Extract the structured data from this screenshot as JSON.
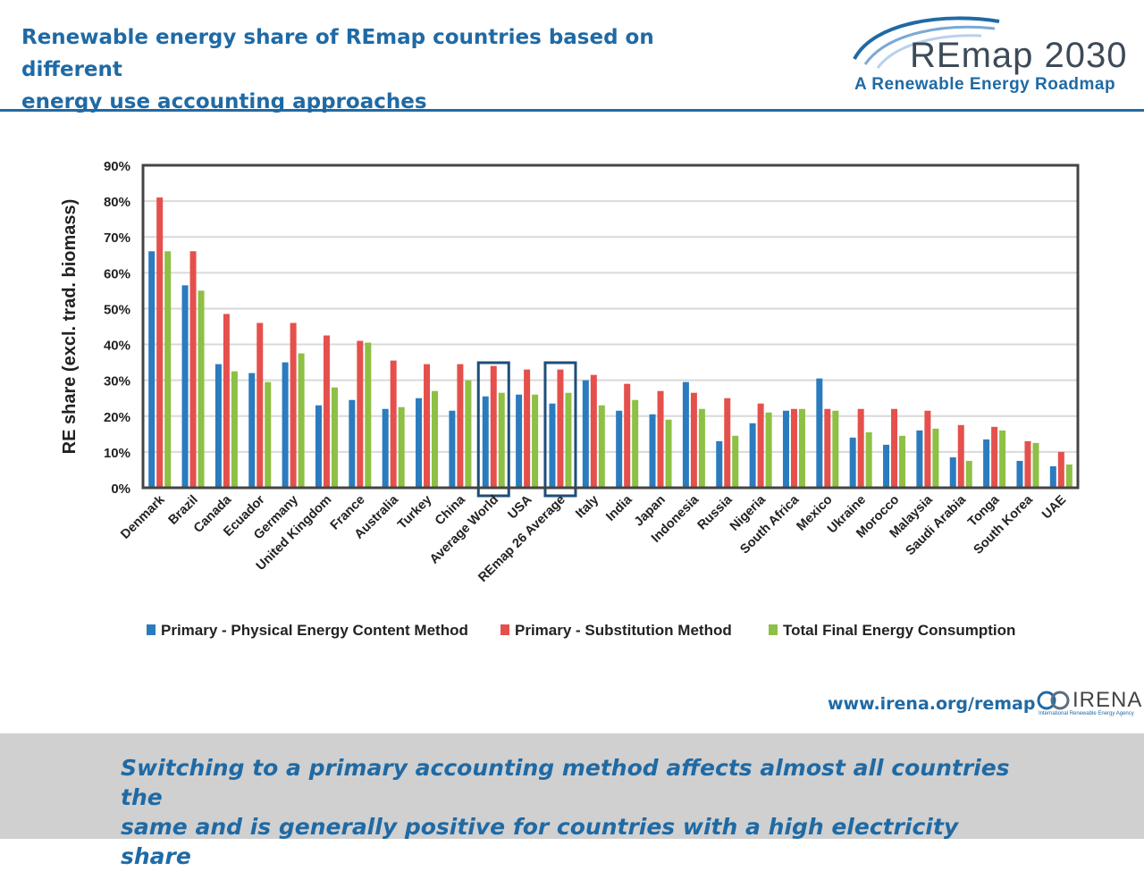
{
  "header": {
    "title_line1": "Renewable energy share of REmap countries based on different",
    "title_line2": "energy use accounting approaches"
  },
  "logo": {
    "main": "REmap 2030",
    "sub": "A Renewable Energy Roadmap"
  },
  "footer_link": "www.irena.org/remap",
  "irena_logo": {
    "word": "IRENA",
    "sub": "International Renewable Energy Agency"
  },
  "caption": {
    "line1": "Switching to a primary accounting method affects almost all countries the",
    "line2": "same and is generally positive for countries with a high electricity share"
  },
  "colors": {
    "primary_physical": "#2b7bbf",
    "primary_substitution": "#e5504c",
    "tfec": "#8dc044",
    "highlight_box": "#1d4e79",
    "title_blue": "#1f6aa5"
  },
  "chart_data": {
    "type": "bar",
    "ylabel": "RE share (excl. trad. biomass)",
    "ylim": [
      0,
      90
    ],
    "yticks": [
      "0%",
      "10%",
      "20%",
      "30%",
      "40%",
      "50%",
      "60%",
      "70%",
      "80%",
      "90%"
    ],
    "grid": true,
    "legend_position": "bottom",
    "highlighted_categories": [
      "Average World",
      "REmap 26 Average"
    ],
    "categories": [
      "Denmark",
      "Brazil",
      "Canada",
      "Ecuador",
      "Germany",
      "United Kingdom",
      "France",
      "Australia",
      "Turkey",
      "China",
      "Average World",
      "USA",
      "REmap 26 Average",
      "Italy",
      "India",
      "Japan",
      "Indonesia",
      "Russia",
      "Nigeria",
      "South Africa",
      "Mexico",
      "Ukraine",
      "Morocco",
      "Malaysia",
      "Saudi Arabia",
      "Tonga",
      "South Korea",
      "UAE"
    ],
    "series": [
      {
        "name": "Primary - Physical Energy Content Method",
        "values": [
          66,
          56.5,
          34.5,
          32,
          35,
          23,
          24.5,
          22,
          25,
          21.5,
          25.5,
          26,
          23.5,
          30,
          21.5,
          20.5,
          29.5,
          13,
          18,
          21.5,
          30.5,
          14,
          12,
          16,
          8.5,
          13.5,
          7.5,
          6
        ]
      },
      {
        "name": "Primary - Substitution Method",
        "values": [
          81,
          66,
          48.5,
          46,
          46,
          42.5,
          41,
          35.5,
          34.5,
          34.5,
          34,
          33,
          33,
          31.5,
          29,
          27,
          26.5,
          25,
          23.5,
          22,
          22,
          22,
          22,
          21.5,
          17.5,
          17,
          13,
          10
        ]
      },
      {
        "name": "Total Final Energy Consumption",
        "values": [
          66,
          55,
          32.5,
          29.5,
          37.5,
          28,
          40.5,
          22.5,
          27,
          30,
          26.5,
          26,
          26.5,
          23,
          24.5,
          19,
          22,
          14.5,
          21,
          22,
          21.5,
          15.5,
          14.5,
          16.5,
          7.5,
          16,
          12.5,
          6.5
        ]
      }
    ]
  }
}
